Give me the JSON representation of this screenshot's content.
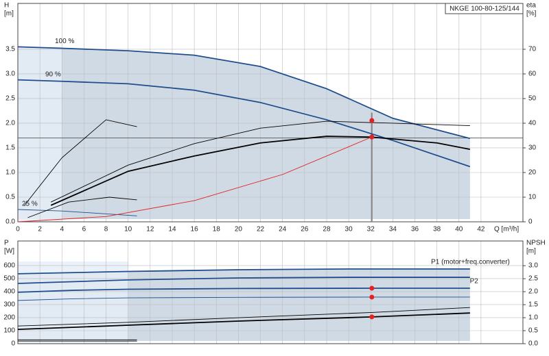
{
  "chart_data": [
    {
      "type": "line",
      "title": "NKGE 100-80-125/144",
      "ylabel": [
        "H",
        "[m]"
      ],
      "y2label": [
        "eta",
        "[%]"
      ],
      "xlabel": "Q [m³/h]",
      "xlim": [
        0,
        45.8
      ],
      "ylim": [
        0,
        4.43
      ],
      "y2lim": [
        0,
        88.6
      ],
      "xticks": [
        0,
        2,
        4,
        6,
        8,
        10,
        12,
        14,
        16,
        18,
        20,
        22,
        24,
        26,
        28,
        30,
        32,
        34,
        36,
        38,
        40,
        42
      ],
      "yticks": [
        {
          "value": 0,
          "label": "0.0"
        },
        {
          "value": 0.5,
          "label": "0.5"
        },
        {
          "value": 1,
          "label": "1.0"
        },
        {
          "value": 1.5,
          "label": "1.5"
        },
        {
          "value": 2,
          "label": "2.0"
        },
        {
          "value": 2.5,
          "label": "2.5"
        },
        {
          "value": 3,
          "label": "3.0"
        },
        {
          "value": 3.5,
          "label": "3.5"
        }
      ],
      "y2ticks": [
        0,
        10,
        20,
        30,
        40,
        50,
        60,
        70
      ],
      "grid": true,
      "shade_color": "#c8d4e1",
      "series": [
        {
          "name": "100 %",
          "color": "#1f4e8c",
          "x": [
            0,
            4,
            10,
            16,
            22,
            28,
            34,
            41
          ],
          "values": [
            3.55,
            3.52,
            3.47,
            3.38,
            3.15,
            2.7,
            2.1,
            1.69
          ]
        },
        {
          "name": "90 %",
          "color": "#1f4e8c",
          "x": [
            0,
            4,
            10,
            16,
            22,
            28,
            34,
            41
          ],
          "values": [
            2.88,
            2.85,
            2.8,
            2.67,
            2.42,
            2.07,
            1.65,
            1.12
          ]
        },
        {
          "name": "25 %",
          "color": "#1f4e8c",
          "x": [
            0,
            4,
            10.8
          ],
          "values": [
            0.25,
            0.22,
            0.12
          ]
        },
        {
          "color": "#000000",
          "axis": "y2",
          "x": [
            3,
            10,
            16,
            22,
            28,
            32,
            38,
            41
          ],
          "values": [
            6.7,
            20.5,
            26.7,
            32,
            34.7,
            34.4,
            32,
            29.4
          ]
        },
        {
          "color": "#000000",
          "axis": "y2",
          "x": [
            3,
            10,
            16,
            22,
            28,
            34,
            41
          ],
          "values": [
            8,
            23,
            31.7,
            38,
            40.8,
            40,
            39
          ]
        },
        {
          "color": "#000000",
          "axis": "y2",
          "x": [
            0.6,
            4,
            8,
            10.8
          ],
          "values": [
            6.7,
            26,
            41.4,
            38.6
          ]
        },
        {
          "color": "#000000",
          "axis": "y2",
          "x": [
            0.9,
            4.6,
            8.3,
            10.8
          ],
          "values": [
            1.7,
            8,
            10,
            8.9
          ]
        },
        {
          "color": "#e02020",
          "x": [
            0,
            8,
            16,
            24,
            32.1
          ],
          "values": [
            0,
            0.107,
            0.43,
            0.96,
            1.72
          ]
        }
      ],
      "hlines": [
        1.7
      ],
      "vlines": [
        32.1
      ],
      "points": [
        {
          "x": 32.1,
          "y": 1.72
        },
        {
          "x": 32.1,
          "y": 41.1,
          "axis": "y2"
        }
      ]
    },
    {
      "type": "line",
      "ylabel": [
        "P",
        "[W]"
      ],
      "y2label": [
        "NPSH",
        "[m]"
      ],
      "xlim": [
        0,
        45.8
      ],
      "ylim": [
        0,
        789
      ],
      "y2lim": [
        0,
        3.95
      ],
      "xticks": [
        0,
        2,
        4,
        6,
        8,
        10,
        12,
        14,
        16,
        18,
        20,
        22,
        24,
        26,
        28,
        30,
        32,
        34,
        36,
        38,
        40,
        42
      ],
      "yticks": [
        0,
        100,
        200,
        300,
        400,
        500,
        600
      ],
      "y2ticks": [
        {
          "value": 0,
          "label": "0.0"
        },
        {
          "value": 0.5,
          "label": "0.5"
        },
        {
          "value": 1,
          "label": "1.0"
        },
        {
          "value": 1.5,
          "label": "1.5"
        },
        {
          "value": 2,
          "label": "2.0"
        },
        {
          "value": 2.5,
          "label": "2.5"
        },
        {
          "value": 3,
          "label": "3.0"
        }
      ],
      "grid": true,
      "shade_color": "#c8d4e1",
      "series": [
        {
          "name": "P1 (motor+freq.converter)",
          "color": "#1f4e8c",
          "x": [
            0,
            10,
            20,
            30,
            41
          ],
          "values": [
            537,
            555,
            568,
            574,
            574
          ]
        },
        {
          "color": "#1f4e8c",
          "x": [
            0,
            10,
            20,
            30,
            41
          ],
          "values": [
            463,
            490,
            505,
            510,
            510
          ]
        },
        {
          "name": "P2",
          "color": "#1f4e8c",
          "x": [
            0,
            5,
            10,
            20,
            32.1,
            41
          ],
          "values": [
            395,
            410,
            418,
            424,
            426,
            426
          ]
        },
        {
          "color": "#1f4e8c",
          "x": [
            0,
            5,
            10,
            20,
            32.1,
            41
          ],
          "values": [
            332,
            345,
            352,
            356,
            358,
            358
          ]
        },
        {
          "color": "#000000",
          "axis": "y2",
          "x": [
            0,
            10,
            20,
            32.1,
            41
          ],
          "values": [
            0.55,
            0.71,
            0.87,
            1.03,
            1.18
          ]
        },
        {
          "color": "#000000",
          "axis": "y2",
          "x": [
            0,
            10,
            20,
            32.1,
            41
          ],
          "values": [
            0.68,
            0.82,
            1.0,
            1.2,
            1.39
          ]
        },
        {
          "color": "#000000",
          "x": [
            0,
            10.8
          ],
          "values": [
            30,
            30
          ]
        },
        {
          "color": "#000000",
          "x": [
            0,
            10.8
          ],
          "values": [
            20,
            20
          ]
        }
      ],
      "vlines": [],
      "points": [
        {
          "x": 32.1,
          "y": 426
        },
        {
          "x": 32.1,
          "y": 358
        },
        {
          "x": 32.1,
          "y": 1.03,
          "axis": "y2"
        }
      ]
    }
  ]
}
